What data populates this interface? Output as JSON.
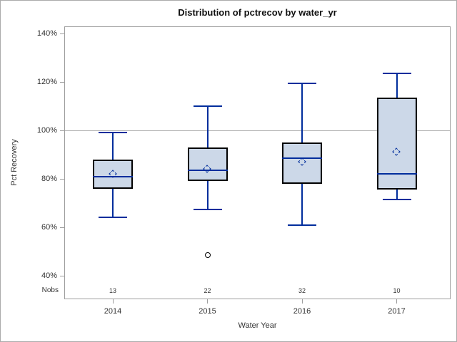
{
  "figure": {
    "title": "Distribution of pctrecov by water_yr",
    "y_axis_label": "Pct Recovery",
    "x_axis_label": "Water Year",
    "nobs_label": "Nobs",
    "colors": {
      "box_fill": "#ccd8e8",
      "box_border": "#000000",
      "whisker_median_mean": "#002d9c",
      "frame_gray": "#9d9d9d",
      "reference_line_gray": "#ababab",
      "background": "#ffffff"
    }
  },
  "chart_data": {
    "type": "box",
    "title": "Distribution of pctrecov by water_yr",
    "xlabel": "Water Year",
    "ylabel": "Pct Recovery",
    "ylim": [
      30,
      143
    ],
    "yticks": [
      40,
      60,
      80,
      100,
      120,
      140
    ],
    "ytick_labels": [
      "40%",
      "60%",
      "80%",
      "100%",
      "120%",
      "140%"
    ],
    "reference_line": 100,
    "grid": "off",
    "legend": "none",
    "categories": [
      "2014",
      "2015",
      "2016",
      "2017"
    ],
    "nobs": [
      13,
      22,
      32,
      10
    ],
    "series": [
      {
        "category": "2014",
        "n": 13,
        "whisker_low": 64,
        "q1": 76,
        "median": 81,
        "q3": 88,
        "whisker_high": 99,
        "mean": 82,
        "outliers": []
      },
      {
        "category": "2015",
        "n": 22,
        "whisker_low": 67.5,
        "q1": 79,
        "median": 83.5,
        "q3": 93,
        "whisker_high": 110,
        "mean": 84,
        "outliers": [
          48.5
        ]
      },
      {
        "category": "2016",
        "n": 32,
        "whisker_low": 61,
        "q1": 78,
        "median": 88.5,
        "q3": 95,
        "whisker_high": 119.5,
        "mean": 87,
        "outliers": []
      },
      {
        "category": "2017",
        "n": 10,
        "whisker_low": 71.5,
        "q1": 75.5,
        "median": 82,
        "q3": 113.5,
        "whisker_high": 123.5,
        "mean": 91,
        "outliers": []
      }
    ]
  }
}
